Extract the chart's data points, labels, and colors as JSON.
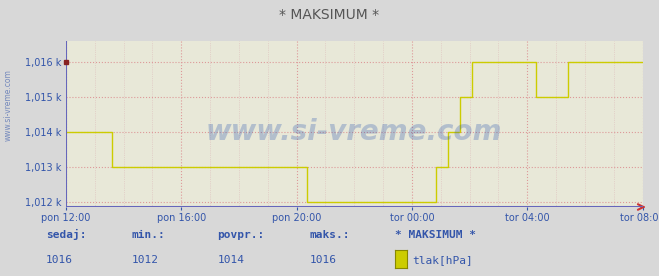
{
  "title": "* MAKSIMUM *",
  "title_color": "#555555",
  "bg_color": "#d8d8d8",
  "plot_bg_color": "#e8e8d8",
  "grid_color_major": "#dd9999",
  "grid_color_minor": "#ddbbbb",
  "line_color": "#cccc00",
  "spine_color": "#6666bb",
  "arrow_color": "#cc3333",
  "watermark": "www.si-vreme.com",
  "watermark_color": "#1144aa",
  "watermark_alpha": 0.25,
  "tick_color": "#3355aa",
  "ymin": 1012,
  "ymax": 1016.6,
  "yticks": [
    1012,
    1013,
    1014,
    1015,
    1016
  ],
  "xtick_labels": [
    "pon 12:00",
    "pon 16:00",
    "pon 20:00",
    "tor 00:00",
    "tor 04:00",
    "tor 08:00"
  ],
  "bottom_labels": [
    "sedaj:",
    "min.:",
    "povpr.:",
    "maks.:",
    "* MAKSIMUM *"
  ],
  "bottom_values": [
    "1016",
    "1012",
    "1014",
    "1016",
    "tlak[hPa]"
  ],
  "legend_color": "#cccc00",
  "figsize": [
    6.59,
    2.76
  ],
  "dpi": 100,
  "pressure_data": [
    1014,
    1014,
    1014,
    1014,
    1014,
    1014,
    1014,
    1014,
    1014,
    1014,
    1014,
    1014,
    1014,
    1014,
    1014,
    1014,
    1014,
    1014,
    1014,
    1014,
    1014,
    1014,
    1014,
    1013,
    1013,
    1013,
    1013,
    1013,
    1013,
    1013,
    1013,
    1013,
    1013,
    1013,
    1013,
    1013,
    1013,
    1013,
    1013,
    1013,
    1013,
    1013,
    1013,
    1013,
    1013,
    1013,
    1013,
    1013,
    1013,
    1013,
    1013,
    1013,
    1013,
    1013,
    1013,
    1013,
    1013,
    1013,
    1013,
    1013,
    1013,
    1013,
    1013,
    1013,
    1013,
    1013,
    1013,
    1013,
    1013,
    1013,
    1013,
    1013,
    1013,
    1013,
    1013,
    1013,
    1013,
    1013,
    1013,
    1013,
    1013,
    1013,
    1013,
    1013,
    1013,
    1013,
    1013,
    1013,
    1013,
    1013,
    1013,
    1013,
    1013,
    1013,
    1013,
    1013,
    1013,
    1013,
    1013,
    1013,
    1013,
    1013,
    1013,
    1013,
    1013,
    1013,
    1013,
    1013,
    1013,
    1013,
    1013,
    1013,
    1013,
    1013,
    1013,
    1013,
    1013,
    1013,
    1013,
    1013,
    1012,
    1012,
    1012,
    1012,
    1012,
    1012,
    1012,
    1012,
    1012,
    1012,
    1012,
    1012,
    1012,
    1012,
    1012,
    1012,
    1012,
    1012,
    1012,
    1012,
    1012,
    1012,
    1012,
    1012,
    1012,
    1012,
    1012,
    1012,
    1012,
    1012,
    1012,
    1012,
    1012,
    1012,
    1012,
    1012,
    1012,
    1012,
    1012,
    1012,
    1012,
    1012,
    1012,
    1012,
    1012,
    1012,
    1012,
    1012,
    1012,
    1012,
    1012,
    1012,
    1012,
    1012,
    1012,
    1012,
    1012,
    1012,
    1012,
    1012,
    1012,
    1012,
    1012,
    1012,
    1013,
    1013,
    1013,
    1013,
    1013,
    1013,
    1014,
    1014,
    1014,
    1014,
    1014,
    1014,
    1015,
    1015,
    1015,
    1015,
    1015,
    1015,
    1016,
    1016,
    1016,
    1016,
    1016,
    1016,
    1016,
    1016,
    1016,
    1016,
    1016,
    1016,
    1016,
    1016,
    1016,
    1016,
    1016,
    1016,
    1016,
    1016,
    1016,
    1016,
    1016,
    1016,
    1016,
    1016,
    1016,
    1016,
    1016,
    1016,
    1016,
    1016,
    1015,
    1015,
    1015,
    1015,
    1015,
    1015,
    1015,
    1015,
    1015,
    1015,
    1015,
    1015,
    1015,
    1015,
    1015,
    1015,
    1016,
    1016,
    1016,
    1016,
    1016,
    1016,
    1016,
    1016,
    1016,
    1016,
    1016,
    1016,
    1016,
    1016,
    1016,
    1016,
    1016,
    1016,
    1016,
    1016,
    1016,
    1016,
    1016,
    1016,
    1016,
    1016,
    1016,
    1016,
    1016,
    1016,
    1016,
    1016,
    1016,
    1016,
    1016,
    1016,
    1016,
    1016
  ]
}
